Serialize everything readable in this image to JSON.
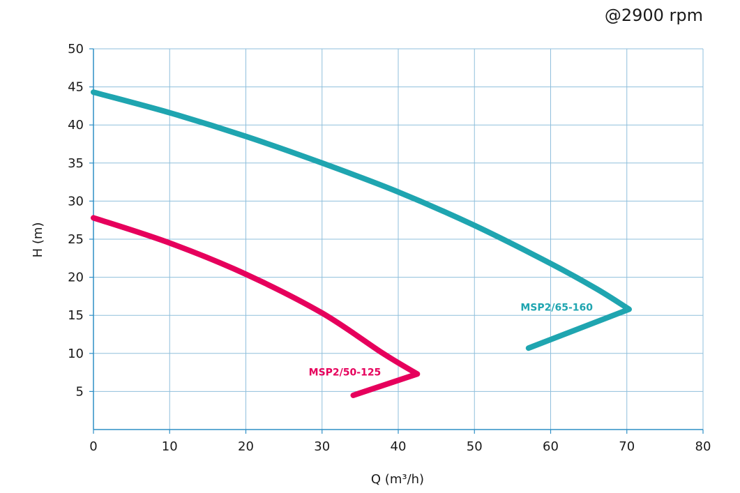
{
  "chart_data": {
    "type": "line",
    "title": "",
    "annotation": "@2900 rpm",
    "xlabel": "Q (m³/h)",
    "ylabel": "H (m)",
    "xlim": [
      0,
      80
    ],
    "ylim": [
      0,
      50
    ],
    "xticks": [
      0,
      10,
      20,
      30,
      40,
      50,
      60,
      70,
      80
    ],
    "yticks": [
      5,
      10,
      15,
      20,
      25,
      30,
      35,
      40,
      45,
      50
    ],
    "grid": true,
    "legend": "none",
    "series": [
      {
        "name": "MSP2/50-125",
        "color": "#e6005c",
        "points": [
          [
            0,
            27.8
          ],
          [
            10,
            24.5
          ],
          [
            20,
            20.4
          ],
          [
            30,
            15.3
          ],
          [
            38,
            10.0
          ],
          [
            42.5,
            7.3
          ],
          [
            34.1,
            4.5
          ]
        ]
      },
      {
        "name": "MSP2/65-160",
        "color": "#1fa5b0",
        "points": [
          [
            0,
            44.3
          ],
          [
            10,
            41.6
          ],
          [
            20,
            38.5
          ],
          [
            30,
            35.0
          ],
          [
            40,
            31.2
          ],
          [
            50,
            26.8
          ],
          [
            60,
            21.8
          ],
          [
            66,
            18.5
          ],
          [
            70.3,
            15.8
          ],
          [
            57.1,
            10.7
          ]
        ]
      }
    ]
  }
}
